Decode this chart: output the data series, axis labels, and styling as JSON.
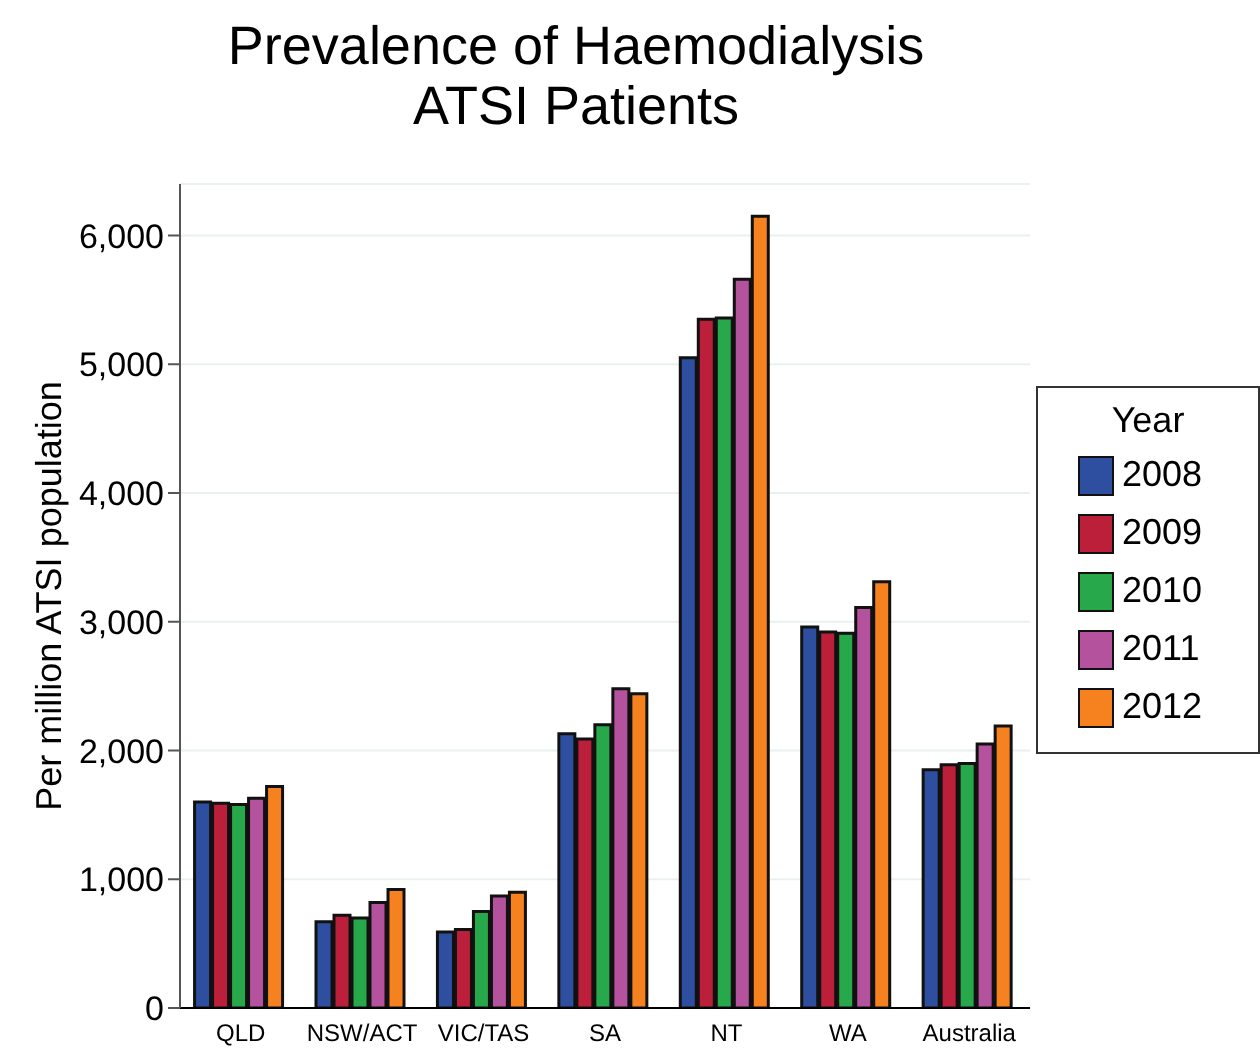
{
  "chart_data": {
    "type": "bar",
    "title": "Prevalence of Haemodialysis\nATSI Patients",
    "ylabel": "Per million ATSI population",
    "legend_title": "Year",
    "categories": [
      "QLD",
      "NSW/ACT",
      "VIC/TAS",
      "SA",
      "NT",
      "WA",
      "Australia"
    ],
    "series": [
      {
        "name": "2008",
        "color": "#2e4fa0",
        "values": [
          1600,
          670,
          590,
          2130,
          5050,
          2960,
          1850
        ]
      },
      {
        "name": "2009",
        "color": "#bc1f3a",
        "values": [
          1590,
          720,
          610,
          2090,
          5350,
          2920,
          1890
        ]
      },
      {
        "name": "2010",
        "color": "#27a84a",
        "values": [
          1580,
          700,
          750,
          2200,
          5360,
          2910,
          1900
        ]
      },
      {
        "name": "2011",
        "color": "#b4529e",
        "values": [
          1630,
          820,
          870,
          2480,
          5660,
          3110,
          2050
        ]
      },
      {
        "name": "2012",
        "color": "#f5821f",
        "values": [
          1720,
          920,
          900,
          2440,
          6150,
          3310,
          2190
        ]
      }
    ],
    "ylim": [
      0,
      6400
    ],
    "yticks": [
      {
        "value": 0,
        "label": "0"
      },
      {
        "value": 1000,
        "label": "1,000"
      },
      {
        "value": 2000,
        "label": "2,000"
      },
      {
        "value": 3000,
        "label": "3,000"
      },
      {
        "value": 4000,
        "label": "4,000"
      },
      {
        "value": 5000,
        "label": "5,000"
      },
      {
        "value": 6000,
        "label": "6,000"
      }
    ],
    "grid": "y",
    "legend": "right"
  }
}
